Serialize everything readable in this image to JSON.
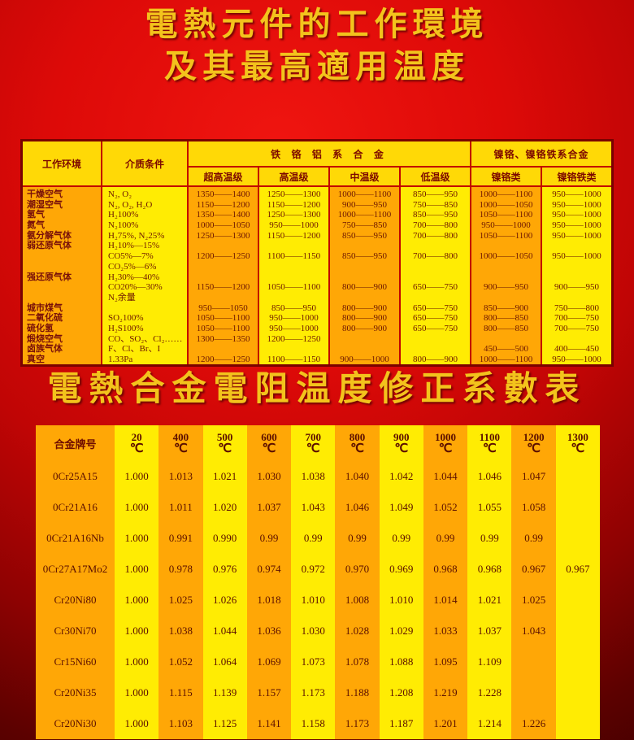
{
  "titles": {
    "main_line1": "電熱元件的工作環境",
    "main_line2": "及其最高適用温度",
    "second": "電熱合金電阻温度修正系數表"
  },
  "colors": {
    "background_red": "#dd0a08",
    "dark_red_edge": "#3c0000",
    "title_gold": "#f3c31c",
    "header_gold": "#ffd906",
    "stripe_orange": "#ffa706",
    "stripe_yellow": "#ffec03",
    "table_line_red": "#c20400",
    "text_maroon": "#6e1602"
  },
  "env_table": {
    "headers": {
      "col_env": "工作环境",
      "col_medium": "介质条件",
      "group_fecral": "铁 铬 铝 系 合 金",
      "group_nicr": "镍铬、镍铬铁系合金",
      "sub": [
        "超高温级",
        "高温级",
        "中温级",
        "低温级",
        "镍铬类",
        "镍铬铁类"
      ]
    },
    "columns": [
      {
        "role": "env",
        "lines": [
          "干燥空气",
          "潮湿空气",
          "氢气",
          "氮气",
          "氨分解气体",
          "弱还原气体",
          "",
          "",
          "强还原气体",
          "",
          "",
          "城市煤气",
          "二氧化硫",
          "硫化氢",
          "煅烧空气",
          "卤族气体",
          "真空"
        ]
      },
      {
        "role": "medium",
        "lines": [
          "N₂, O₂",
          "N₂, O₂, H₂O",
          "H₂100%",
          "N₂100%",
          "H₂75%, N₂25%",
          "H₂10%—15%",
          "CO5%—7%",
          "CO₂5%—6%",
          "H₂30%—40%",
          "CO20%—30%",
          "N₂余量",
          "",
          "SO₂100%",
          "H₂S100%",
          "CO、SO₂、Cl₂……",
          "F、Cl、Br、I",
          "1.33Pa"
        ]
      },
      {
        "role": "ultra_high_grade",
        "lines": [
          "1350——1400",
          "1150——1200",
          "1350——1400",
          "1000——1050",
          "1250——1300",
          "",
          "1200——1250",
          "",
          "",
          "1150——1200",
          "",
          "950——1050",
          "1050——1100",
          "1050——1100",
          "1300——1350",
          "",
          "1200——1250"
        ]
      },
      {
        "role": "high_grade",
        "lines": [
          "1250——1300",
          "1150——1200",
          "1250——1300",
          "950——1000",
          "1150——1200",
          "",
          "1100——1150",
          "",
          "",
          "1050——1100",
          "",
          "850——950",
          "950——1000",
          "950——1000",
          "1200——1250",
          "",
          "1100——1150"
        ]
      },
      {
        "role": "medium_grade",
        "lines": [
          "1000——1100",
          "900——950",
          "1000——1100",
          "750——850",
          "850——950",
          "",
          "850——950",
          "",
          "",
          "800——900",
          "",
          "800——900",
          "800——900",
          "800——900",
          "",
          "",
          "900——1000"
        ]
      },
      {
        "role": "low_grade",
        "lines": [
          "850——950",
          "750——850",
          "850——950",
          "700——800",
          "700——800",
          "",
          "700——800",
          "",
          "",
          "650——750",
          "",
          "650——750",
          "650——750",
          "650——750",
          "",
          "",
          "800——900"
        ]
      },
      {
        "role": "nicr_type",
        "lines": [
          "1000——1100",
          "1000——1050",
          "1050——1100",
          "950——1000",
          "1050——1100",
          "",
          "1000——1050",
          "",
          "",
          "900——950",
          "",
          "850——900",
          "800——850",
          "800——850",
          "",
          "450——500",
          "1000——1100"
        ]
      },
      {
        "role": "nicrfe_type",
        "lines": [
          "950——1000",
          "950——1000",
          "950——1000",
          "950——1000",
          "950——1000",
          "",
          "950——1000",
          "",
          "",
          "900——950",
          "",
          "750——800",
          "700——750",
          "700——750",
          "",
          "400——450",
          "950——1000"
        ]
      }
    ]
  },
  "coef_table": {
    "name_header": "合金牌号",
    "temp_unit": "℃",
    "temp_headers": [
      "20",
      "400",
      "500",
      "600",
      "700",
      "800",
      "900",
      "1000",
      "1100",
      "1200",
      "1300"
    ],
    "rows": [
      {
        "alloy": "0Cr25A15",
        "values": [
          "1.000",
          "1.013",
          "1.021",
          "1.030",
          "1.038",
          "1.040",
          "1.042",
          "1.044",
          "1.046",
          "1.047",
          ""
        ]
      },
      {
        "alloy": "0Cr21A16",
        "values": [
          "1.000",
          "1.011",
          "1.020",
          "1.037",
          "1.043",
          "1.046",
          "1.049",
          "1.052",
          "1.055",
          "1.058",
          ""
        ]
      },
      {
        "alloy": "0Cr21A16Nb",
        "values": [
          "1.000",
          "0.991",
          "0.990",
          "0.99",
          "0.99",
          "0.99",
          "0.99",
          "0.99",
          "0.99",
          "0.99",
          ""
        ]
      },
      {
        "alloy": "0Cr27A17Mo2",
        "values": [
          "1.000",
          "0.978",
          "0.976",
          "0.974",
          "0.972",
          "0.970",
          "0.969",
          "0.968",
          "0.968",
          "0.967",
          "0.967"
        ]
      },
      {
        "alloy": "Cr20Ni80",
        "values": [
          "1.000",
          "1.025",
          "1.026",
          "1.018",
          "1.010",
          "1.008",
          "1.010",
          "1.014",
          "1.021",
          "1.025",
          ""
        ]
      },
      {
        "alloy": "Cr30Ni70",
        "values": [
          "1.000",
          "1.038",
          "1.044",
          "1.036",
          "1.030",
          "1.028",
          "1.029",
          "1.033",
          "1.037",
          "1.043",
          ""
        ]
      },
      {
        "alloy": "Cr15Ni60",
        "values": [
          "1.000",
          "1.052",
          "1.064",
          "1.069",
          "1.073",
          "1.078",
          "1.088",
          "1.095",
          "1.109",
          "",
          ""
        ]
      },
      {
        "alloy": "Cr20Ni35",
        "values": [
          "1.000",
          "1.115",
          "1.139",
          "1.157",
          "1.173",
          "1.188",
          "1.208",
          "1.219",
          "1.228",
          "",
          ""
        ]
      },
      {
        "alloy": "Cr20Ni30",
        "values": [
          "1.000",
          "1.103",
          "1.125",
          "1.141",
          "1.158",
          "1.173",
          "1.187",
          "1.201",
          "1.214",
          "1.226",
          ""
        ]
      }
    ]
  }
}
